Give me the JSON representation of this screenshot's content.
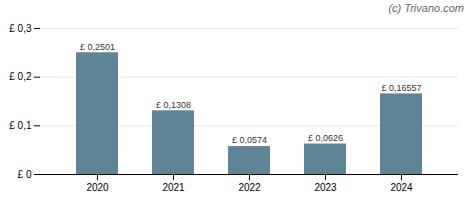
{
  "chart_data": {
    "type": "bar",
    "categories": [
      "2020",
      "2021",
      "2022",
      "2023",
      "2024"
    ],
    "values": [
      0.2501,
      0.1308,
      0.0574,
      0.0626,
      0.16557
    ],
    "value_labels": [
      "£ 0,2501",
      "£ 0,1308",
      "£ 0,0574",
      "£ 0,0626",
      "£ 0,16557"
    ],
    "data_labels": true,
    "color": "#5f8496",
    "ylim": [
      0,
      0.3
    ],
    "yticks": [
      {
        "value": 0.0,
        "label": "£ 0"
      },
      {
        "value": 0.1,
        "label": "£ 0,1"
      },
      {
        "value": 0.2,
        "label": "£ 0,2"
      },
      {
        "value": 0.3,
        "label": "£ 0,3"
      }
    ],
    "grid": true,
    "annotations": [
      "(c) Trivano.com"
    ]
  }
}
